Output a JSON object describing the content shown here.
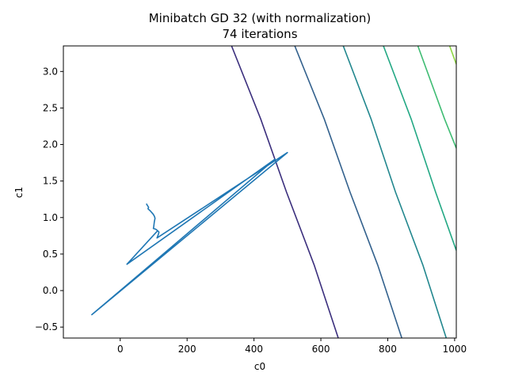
{
  "chart_data": {
    "type": "line",
    "title_line1": "Minibatch GD 32 (with normalization)",
    "title_line2": "74 iterations",
    "xlabel": "c0",
    "ylabel": "c1",
    "xlim": [
      -170,
      1005
    ],
    "ylim": [
      -0.65,
      3.35
    ],
    "xticks": [
      0,
      200,
      400,
      600,
      800,
      1000
    ],
    "yticks": [
      -0.5,
      0.0,
      0.5,
      1.0,
      1.5,
      2.0,
      2.5,
      3.0
    ],
    "ytick_labels": [
      "−0.5",
      "0.0",
      "0.5",
      "1.0",
      "1.5",
      "2.0",
      "2.5",
      "3.0"
    ],
    "grid": false,
    "path_color": "#1f77b4",
    "path": [
      [
        78,
        1.19
      ],
      [
        82,
        1.16
      ],
      [
        85,
        1.14
      ],
      [
        83,
        1.12
      ],
      [
        90,
        1.09
      ],
      [
        94,
        1.07
      ],
      [
        98,
        1.05
      ],
      [
        102,
        1.02
      ],
      [
        104,
        0.99
      ],
      [
        102,
        0.94
      ],
      [
        100,
        0.87
      ],
      [
        99,
        0.85
      ],
      [
        106,
        0.84
      ],
      [
        112,
        0.82
      ],
      [
        116,
        0.8
      ],
      [
        114,
        0.77
      ],
      [
        110,
        0.72
      ],
      [
        500,
        1.89
      ],
      [
        -85,
        -0.33
      ],
      [
        463,
        1.8
      ],
      [
        20,
        0.36
      ],
      [
        112,
        0.82
      ]
    ],
    "contours": [
      {
        "color": "#3b2f7d",
        "points": [
          [
            333,
            3.35
          ],
          [
            420,
            2.35
          ],
          [
            497,
            1.35
          ],
          [
            580,
            0.35
          ],
          [
            652,
            -0.65
          ]
        ]
      },
      {
        "color": "#33618d",
        "points": [
          [
            522,
            3.35
          ],
          [
            610,
            2.35
          ],
          [
            687,
            1.35
          ],
          [
            770,
            0.35
          ],
          [
            842,
            -0.65
          ]
        ]
      },
      {
        "color": "#22878e",
        "points": [
          [
            667,
            3.35
          ],
          [
            750,
            2.35
          ],
          [
            823,
            1.35
          ],
          [
            905,
            0.35
          ],
          [
            975,
            -0.65
          ]
        ]
      },
      {
        "color": "#23a884",
        "points": [
          [
            787,
            3.35
          ],
          [
            870,
            2.35
          ],
          [
            943,
            1.35
          ],
          [
            1005,
            0.55
          ]
        ]
      },
      {
        "color": "#3fbc73",
        "points": [
          [
            890,
            3.35
          ],
          [
            970,
            2.35
          ],
          [
            1005,
            1.95
          ]
        ]
      },
      {
        "color": "#8fd744",
        "points": [
          [
            985,
            3.35
          ],
          [
            1005,
            3.1
          ]
        ]
      }
    ]
  }
}
